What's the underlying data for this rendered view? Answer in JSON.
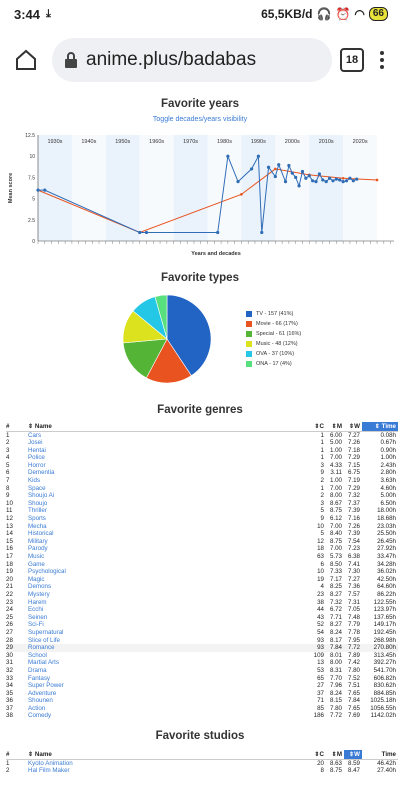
{
  "status": {
    "time": "3:44",
    "net": "65,5KB/d",
    "battery": "66"
  },
  "browser": {
    "url": "anime.plus/badabas",
    "tabs_count": "18"
  },
  "years": {
    "title": "Favorite years",
    "toggle_label": "Toggle decades/years visibility",
    "decades": [
      "1930s",
      "1940s",
      "1950s",
      "1960s",
      "1970s",
      "1980s",
      "1990s",
      "2000s",
      "2010s",
      "2020s"
    ],
    "y_ticks": [
      "12.5",
      "10",
      "7.5",
      "5",
      "2.5",
      "0"
    ],
    "y_label": "Mean score",
    "x_label": "Years and decades"
  },
  "chart_data": [
    {
      "type": "line",
      "title": "Favorite years",
      "xlabel": "Years and decades",
      "ylabel": "Mean score",
      "ylim": [
        0,
        12.5
      ],
      "series": [
        {
          "name": "years",
          "x": [
            1925,
            1927,
            1955,
            1957,
            1978,
            1981,
            1984,
            1988,
            1990,
            1991,
            1993,
            1995,
            1996,
            1998,
            1999,
            2000,
            2001,
            2002,
            2003,
            2004,
            2005,
            2006,
            2007,
            2008,
            2009,
            2010,
            2011,
            2012,
            2013,
            2014,
            2015,
            2016,
            2017,
            2018,
            2019
          ],
          "y": [
            6.0,
            6.0,
            1.0,
            1.0,
            1.0,
            10.0,
            7.0,
            8.5,
            10.0,
            1.0,
            8.7,
            7.6,
            9.0,
            7.0,
            8.9,
            8.0,
            7.5,
            6.5,
            8.2,
            7.4,
            7.7,
            7.1,
            7.0,
            7.9,
            7.2,
            7.0,
            7.4,
            7.1,
            7.3,
            7.2,
            7.0,
            7.1,
            7.4,
            7.1,
            7.3
          ]
        },
        {
          "name": "decades",
          "x": [
            1925,
            1955,
            1985,
            1995,
            2005,
            2015,
            2025
          ],
          "y": [
            6.0,
            1.0,
            5.5,
            8.5,
            7.8,
            7.4,
            7.2
          ]
        }
      ]
    },
    {
      "type": "pie",
      "title": "Favorite types",
      "categories": [
        "TV - 157 (41%)",
        "Movie - 66 (17%)",
        "Special - 61 (16%)",
        "Music - 48 (12%)",
        "OVA - 37 (10%)",
        "ONA - 17 (4%)"
      ],
      "values": [
        157,
        66,
        61,
        48,
        37,
        17
      ],
      "colors": [
        "#2164c4",
        "#e8531f",
        "#53b436",
        "#dde21f",
        "#24c7e6",
        "#59e07e"
      ]
    }
  ],
  "types": {
    "title": "Favorite types",
    "legend": [
      "TV - 157 (41%)",
      "Movie - 66 (17%)",
      "Special - 61 (16%)",
      "Music - 48 (12%)",
      "OVA - 37 (10%)",
      "ONA - 17 (4%)"
    ]
  },
  "genres": {
    "title": "Favorite genres",
    "headers": [
      "#",
      "Name",
      "C",
      "M",
      "W",
      "Time"
    ],
    "rows": [
      [
        "1",
        "Cars",
        "1",
        "6.00",
        "7.27",
        "0.08h"
      ],
      [
        "2",
        "Josei",
        "1",
        "5.00",
        "7.26",
        "0.67h"
      ],
      [
        "3",
        "Hentai",
        "1",
        "1.00",
        "7.18",
        "0.90h"
      ],
      [
        "4",
        "Police",
        "1",
        "7.00",
        "7.29",
        "1.00h"
      ],
      [
        "5",
        "Horror",
        "3",
        "4.33",
        "7.15",
        "2.43h"
      ],
      [
        "6",
        "Dementia",
        "9",
        "3.11",
        "6.75",
        "2.80h"
      ],
      [
        "7",
        "Kids",
        "2",
        "1.00",
        "7.19",
        "3.63h"
      ],
      [
        "8",
        "Space",
        "1",
        "7.00",
        "7.29",
        "4.60h"
      ],
      [
        "9",
        "Shoujo Ai",
        "2",
        "8.00",
        "7.32",
        "5.00h"
      ],
      [
        "10",
        "Shoujo",
        "3",
        "8.67",
        "7.37",
        "6.50h"
      ],
      [
        "11",
        "Thriller",
        "5",
        "8.75",
        "7.39",
        "18.00h"
      ],
      [
        "12",
        "Sports",
        "9",
        "6.12",
        "7.16",
        "18.68h"
      ],
      [
        "13",
        "Mecha",
        "10",
        "7.00",
        "7.26",
        "23.03h"
      ],
      [
        "14",
        "Historical",
        "5",
        "8.40",
        "7.39",
        "25.50h"
      ],
      [
        "15",
        "Military",
        "12",
        "8.75",
        "7.54",
        "26.45h"
      ],
      [
        "16",
        "Parody",
        "18",
        "7.00",
        "7.23",
        "27.92h"
      ],
      [
        "17",
        "Music",
        "63",
        "5.73",
        "6.38",
        "33.47h"
      ],
      [
        "18",
        "Game",
        "6",
        "8.50",
        "7.41",
        "34.28h"
      ],
      [
        "19",
        "Psychological",
        "10",
        "7.33",
        "7.30",
        "36.02h"
      ],
      [
        "20",
        "Magic",
        "19",
        "7.17",
        "7.27",
        "42.50h"
      ],
      [
        "21",
        "Demons",
        "4",
        "8.25",
        "7.36",
        "64.60h"
      ],
      [
        "22",
        "Mystery",
        "23",
        "8.27",
        "7.57",
        "86.22h"
      ],
      [
        "23",
        "Harem",
        "38",
        "7.32",
        "7.31",
        "122.55h"
      ],
      [
        "24",
        "Ecchi",
        "44",
        "6.72",
        "7.05",
        "123.97h"
      ],
      [
        "25",
        "Seinen",
        "43",
        "7.71",
        "7.48",
        "137.65h"
      ],
      [
        "26",
        "Sci-Fi",
        "52",
        "8.27",
        "7.79",
        "149.17h"
      ],
      [
        "27",
        "Supernatural",
        "54",
        "8.24",
        "7.78",
        "192.45h"
      ],
      [
        "28",
        "Slice of Life",
        "93",
        "8.17",
        "7.95",
        "268.98h"
      ],
      [
        "29",
        "Romance",
        "93",
        "7.84",
        "7.72",
        "270.80h"
      ],
      [
        "30",
        "School",
        "109",
        "8.01",
        "7.89",
        "313.45h"
      ],
      [
        "31",
        "Martial Arts",
        "13",
        "8.00",
        "7.42",
        "392.27h"
      ],
      [
        "32",
        "Drama",
        "53",
        "8.31",
        "7.80",
        "541.70h"
      ],
      [
        "33",
        "Fantasy",
        "65",
        "7.70",
        "7.52",
        "606.82h"
      ],
      [
        "34",
        "Super Power",
        "27",
        "7.96",
        "7.51",
        "830.62h"
      ],
      [
        "35",
        "Adventure",
        "37",
        "8.24",
        "7.65",
        "884.85h"
      ],
      [
        "36",
        "Shounen",
        "71",
        "8.15",
        "7.84",
        "1025.18h"
      ],
      [
        "37",
        "Action",
        "85",
        "7.80",
        "7.65",
        "1056.55h"
      ],
      [
        "38",
        "Comedy",
        "186",
        "7.72",
        "7.69",
        "1142.02h"
      ]
    ]
  },
  "studios": {
    "title": "Favorite studios",
    "headers": [
      "#",
      "Name",
      "C",
      "M",
      "W",
      "Time"
    ],
    "rows": [
      [
        "1",
        "Kyoto Animation",
        "20",
        "8.63",
        "8.59",
        "46.42h"
      ],
      [
        "2",
        "Hal Film Maker",
        "8",
        "8.75",
        "8.47",
        "27.40h"
      ]
    ]
  }
}
